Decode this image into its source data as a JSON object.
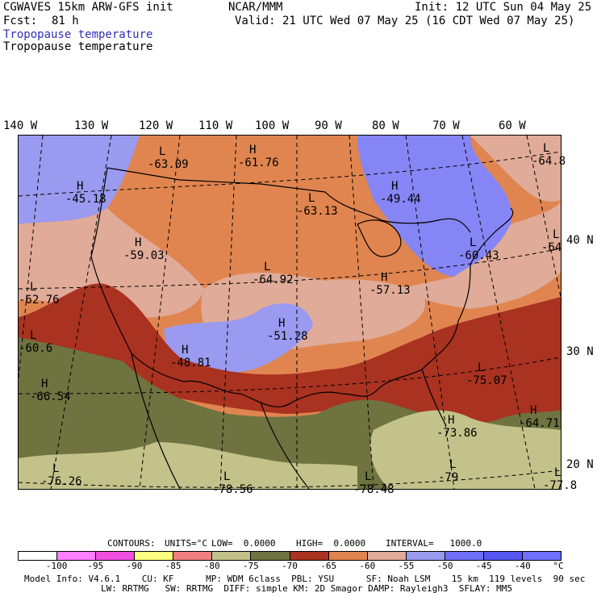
{
  "header": {
    "model": "CGWAVES 15km ARW-GFS init",
    "org": "NCAR/MMM",
    "init": "Init: 12 UTC Sun 04 May 25",
    "fcst_label": "Fcst:",
    "fcst_value": "81 h",
    "valid": "Valid: 21 UTC Wed 07 May 25 (16 CDT Wed 07 May 25)",
    "field_line1": "Tropopause temperature",
    "field_line2": "Tropopause temperature"
  },
  "map": {
    "lon_labels": [
      "140 W",
      "130 W",
      "120 W",
      "110 W",
      "100 W",
      "90 W",
      "80 W",
      "70 W",
      "60 W"
    ],
    "lat_labels": [
      "40 N",
      "30 N",
      "20 N"
    ],
    "colors": {
      "purple": "#9a9af0",
      "blue": "#8585f5",
      "light_salmon": "#e0ab98",
      "orange": "#e08550",
      "red_brown": "#a93220",
      "olive": "#6e7340",
      "khaki": "#c2c28a"
    },
    "symbols": [
      {
        "letter": "L",
        "value": "-63.09"
      },
      {
        "letter": "H",
        "value": "-61.76"
      },
      {
        "letter": "H",
        "value": "-45.18"
      },
      {
        "letter": "H",
        "value": "-49.44"
      },
      {
        "letter": "L",
        "value": "-63.13"
      },
      {
        "letter": "H",
        "value": "-59.03"
      },
      {
        "letter": "L",
        "value": "-64.92"
      },
      {
        "letter": "H",
        "value": "-57.13"
      },
      {
        "letter": "L",
        "value": "-60.43"
      },
      {
        "letter": "L",
        "value": "-62.76"
      },
      {
        "letter": "H",
        "value": "-51.28"
      },
      {
        "letter": "H",
        "value": "-48.81"
      },
      {
        "letter": "H",
        "value": "-66.54"
      },
      {
        "letter": "L",
        "value": "-75.07"
      },
      {
        "letter": "H",
        "value": "-64.71"
      },
      {
        "letter": "L",
        "value": "-78.56"
      },
      {
        "letter": "L",
        "value": "-76.26"
      },
      {
        "letter": "L",
        "value": "-78.48"
      },
      {
        "letter": "L",
        "value": "-79"
      },
      {
        "letter": "H",
        "value": "-73.86"
      },
      {
        "letter": "L",
        "value": "-64.8"
      },
      {
        "letter": "L",
        "value": "-64"
      },
      {
        "letter": "L",
        "value": "-60.6"
      },
      {
        "letter": "L",
        "value": "-77.8"
      }
    ]
  },
  "contours": {
    "label": "CONTOURS:",
    "units": "UNITS=°C",
    "low": "LOW=  0.0000",
    "high": "HIGH=  0.0000",
    "interval": "INTERVAL=   1000.0"
  },
  "colorbar": {
    "colors": [
      "#ffffff",
      "#ff80ff",
      "#f050e0",
      "#ffff80",
      "#f08080",
      "#c2c28a",
      "#6e7340",
      "#a93220",
      "#e08550",
      "#e0ab98",
      "#9a9af0",
      "#6f6ff8",
      "#5555f0",
      "#7070ff"
    ],
    "ticks": [
      "-100",
      "-95",
      "-90",
      "-85",
      "-80",
      "-75",
      "-70",
      "-65",
      "-60",
      "-55",
      "-50",
      "-45",
      "-40",
      "°C"
    ]
  },
  "footer": {
    "line1": "Model Info: V4.6.1    CU: KF      MP: WDM 6class  PBL: YSU      SF: Noah LSM    15 km  119 levels  90 sec",
    "line2": "LW: RRTMG   SW: RRTMG  DIFF: simple KM: 2D Smagor DAMP: Rayleigh3  SFLAY: MM5"
  }
}
